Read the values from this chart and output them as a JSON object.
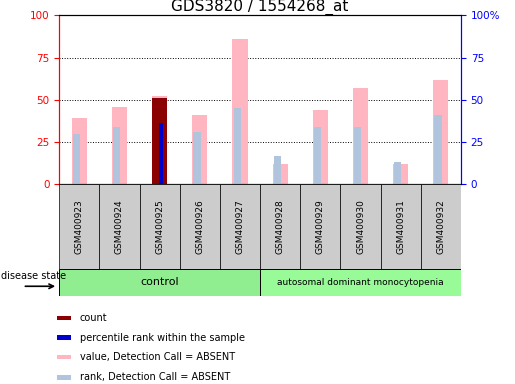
{
  "title": "GDS3820 / 1554268_at",
  "samples": [
    "GSM400923",
    "GSM400924",
    "GSM400925",
    "GSM400926",
    "GSM400927",
    "GSM400928",
    "GSM400929",
    "GSM400930",
    "GSM400931",
    "GSM400932"
  ],
  "value_absent": [
    39,
    46,
    52,
    41,
    86,
    12,
    44,
    57,
    12,
    62
  ],
  "rank_absent": [
    30,
    34,
    37,
    31,
    45,
    17,
    34,
    34,
    13,
    41
  ],
  "count_red": [
    0,
    0,
    51,
    0,
    0,
    0,
    0,
    0,
    0,
    0
  ],
  "percentile_blue": [
    0,
    0,
    36,
    0,
    0,
    0,
    0,
    0,
    0,
    0
  ],
  "ylim": [
    0,
    100
  ],
  "color_value_absent": "#FFB6C1",
  "color_rank_absent": "#B0C4DE",
  "color_count": "#8B0000",
  "color_percentile": "#0000CD",
  "control_color": "#90EE90",
  "disease_color": "#98FB98",
  "left_axis_color": "#FF0000",
  "right_axis_color": "#0000FF",
  "title_fontsize": 11,
  "n_control": 5,
  "n_disease": 5,
  "right_ytick_labels": [
    "0",
    "25",
    "50",
    "75",
    "100%"
  ],
  "left_ytick_labels": [
    "0",
    "25",
    "50",
    "75",
    "100"
  ],
  "right_ytick_top": "100%",
  "legend_items": [
    {
      "color": "#8B0000",
      "label": "count"
    },
    {
      "color": "#0000CD",
      "label": "percentile rank within the sample"
    },
    {
      "color": "#FFB6C1",
      "label": "value, Detection Call = ABSENT"
    },
    {
      "color": "#B0C4DE",
      "label": "rank, Detection Call = ABSENT"
    }
  ]
}
